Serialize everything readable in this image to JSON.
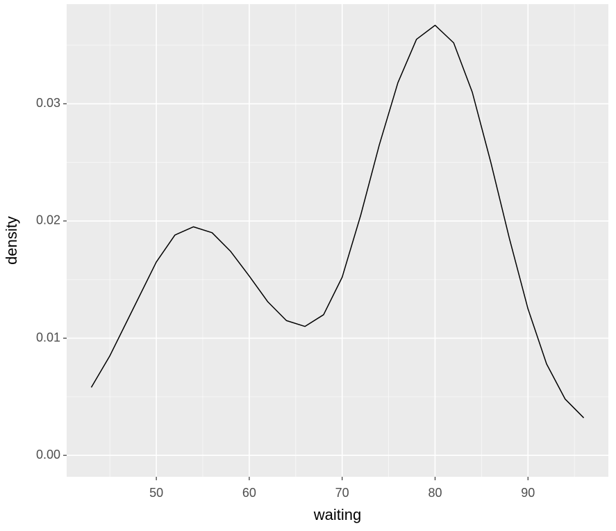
{
  "chart_data": {
    "type": "line",
    "x_label": "waiting",
    "y_label": "density",
    "x": [
      43,
      45,
      47,
      50,
      52,
      54,
      56,
      58,
      60,
      62,
      64,
      66,
      68,
      70,
      72,
      74,
      76,
      78,
      80,
      82,
      84,
      86,
      88,
      90,
      92,
      94,
      96
    ],
    "series": [
      {
        "color": "#000000",
        "values": [
          0.0058,
          0.0085,
          0.0117,
          0.0165,
          0.0188,
          0.0195,
          0.019,
          0.0174,
          0.0153,
          0.0131,
          0.0115,
          0.011,
          0.012,
          0.0152,
          0.0205,
          0.0265,
          0.0318,
          0.0355,
          0.0367,
          0.0352,
          0.031,
          0.025,
          0.0185,
          0.0125,
          0.0078,
          0.0048,
          0.0032
        ]
      }
    ],
    "xlim": [
      40.35,
      98.65
    ],
    "ylim": [
      -0.00183,
      0.0385
    ],
    "xticks": [
      50,
      60,
      70,
      80,
      90
    ],
    "yticks": [
      {
        "value": 0,
        "label": "0.00"
      },
      0.01,
      0.02,
      0.03
    ],
    "xminor": [
      45,
      55,
      65,
      75,
      85,
      95
    ],
    "yminor": [
      0.005,
      0.015,
      0.025,
      0.035
    ],
    "grid": true
  }
}
